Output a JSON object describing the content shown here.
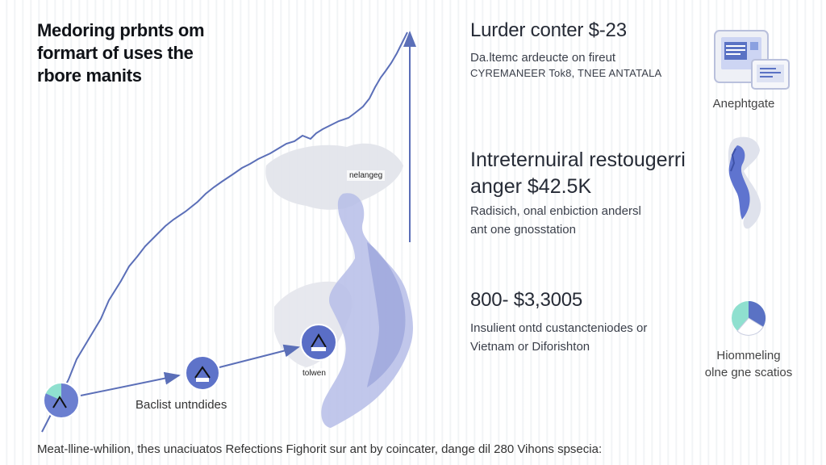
{
  "header": {
    "title_lines": [
      "Medoring prbnts om",
      "formart of uses the",
      "rbore manits"
    ]
  },
  "map": {
    "labels": [
      "nelangeg",
      "tolwen"
    ]
  },
  "flow": {
    "node_label": "Baclist untndides"
  },
  "sections": [
    {
      "title": "Lurder conter $-23",
      "lines": [
        "Da.ltemc ardeucte on fireut",
        "CYREMANEER Tok8, TNEE ANTATALA"
      ],
      "icon": "monitor-documents-icon",
      "icon_caption": "Anephtgate"
    },
    {
      "title_lines": [
        "Intreternuiral restougerri",
        "anger $42.5K"
      ],
      "lines": [
        "Radisich, onal enbiction andersl",
        "ant one gnosstation"
      ],
      "icon": "vietnam-map-icon"
    },
    {
      "title": "800- $3,3005",
      "lines": [
        "Insulient ontd custancteniodes or",
        "Vietnam or Diforishton"
      ],
      "icon": "pie-chart-icon",
      "icon_caption_lines": [
        "Hiommeling",
        "olne gne scatios"
      ]
    }
  ],
  "footer": {
    "text": "Meat-lline-whilion, thes unaciuatos Refections Fighorit sur ant by coincater, dange dil 280 Vihons spsecia:"
  },
  "colors": {
    "accent": "#5a72c4",
    "map_fill": "#dfe1ea",
    "map_highlight": "#aeb7e6",
    "line": "#5b6fb8"
  }
}
